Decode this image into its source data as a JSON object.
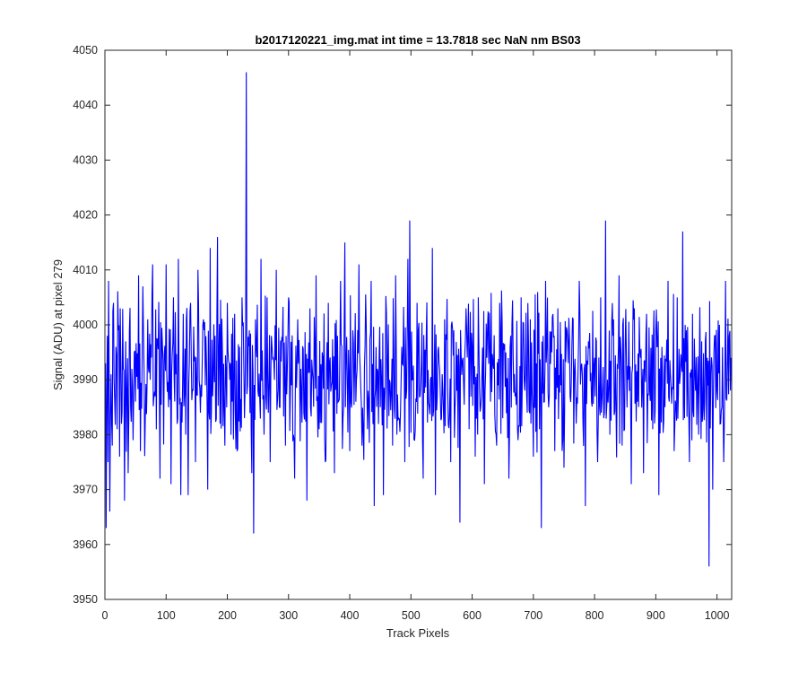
{
  "chart_data": {
    "type": "line",
    "title": "b2017120221_img.mat int time = 13.7818 sec  NaN nm BS03",
    "xlabel": "Track Pixels",
    "ylabel": "Signal (ADU) at pixel 279",
    "xlim": [
      0,
      1024
    ],
    "ylim": [
      3950,
      4050
    ],
    "xticks": [
      0,
      100,
      200,
      300,
      400,
      500,
      600,
      700,
      800,
      900,
      1000
    ],
    "yticks": [
      3950,
      3960,
      3970,
      3980,
      3990,
      4000,
      4010,
      4020,
      4030,
      4040,
      4050
    ],
    "grid": false,
    "legend": "none",
    "series": [
      {
        "color": "#0000ff",
        "x_start": 1,
        "x_step": 1,
        "baseline": 3991,
        "values_key_points": [
          [
            1,
            3993
          ],
          [
            2,
            3963
          ],
          [
            3,
            3988
          ],
          [
            4,
            3998
          ],
          [
            5,
            3975
          ],
          [
            6,
            4008
          ],
          [
            7,
            3990
          ],
          [
            8,
            3966
          ],
          [
            9,
            3983
          ],
          [
            10,
            3991
          ],
          [
            12,
            3978
          ],
          [
            14,
            4004
          ],
          [
            16,
            3986
          ],
          [
            18,
            3996
          ],
          [
            20,
            3981
          ],
          [
            22,
            3999
          ],
          [
            24,
            3976
          ],
          [
            26,
            3994
          ],
          [
            28,
            3984
          ],
          [
            30,
            3992
          ],
          [
            32,
            3968
          ],
          [
            34,
            3997
          ],
          [
            36,
            3988
          ],
          [
            38,
            3973
          ],
          [
            40,
            3999
          ],
          [
            42,
            3985
          ],
          [
            44,
            3992
          ],
          [
            46,
            3979
          ],
          [
            48,
            3995
          ],
          [
            50,
            3986
          ],
          [
            55,
            4009
          ],
          [
            58,
            3977
          ],
          [
            62,
            4007
          ],
          [
            66,
            3983
          ],
          [
            70,
            4001
          ],
          [
            74,
            3990
          ],
          [
            78,
            4011
          ],
          [
            82,
            3987
          ],
          [
            86,
            3997
          ],
          [
            90,
            3972
          ],
          [
            95,
            3993
          ],
          [
            100,
            4011
          ],
          [
            104,
            3985
          ],
          [
            108,
            3971
          ],
          [
            112,
            4005
          ],
          [
            116,
            3991
          ],
          [
            120,
            4012
          ],
          [
            124,
            3969
          ],
          [
            128,
            4002
          ],
          [
            132,
            3980
          ],
          [
            136,
            3969
          ],
          [
            140,
            4004
          ],
          [
            144,
            3988
          ],
          [
            148,
            3975
          ],
          [
            152,
            4010
          ],
          [
            156,
            3984
          ],
          [
            160,
            4000
          ],
          [
            164,
            3989
          ],
          [
            168,
            3970
          ],
          [
            172,
            4014
          ],
          [
            176,
            3987
          ],
          [
            180,
            3998
          ],
          [
            184,
            4016
          ],
          [
            188,
            3982
          ],
          [
            192,
            3995
          ],
          [
            196,
            3978
          ],
          [
            200,
            4004
          ],
          [
            204,
            3990
          ],
          [
            208,
            3986
          ],
          [
            212,
            4002
          ],
          [
            216,
            3977
          ],
          [
            220,
            3996
          ],
          [
            224,
            4005
          ],
          [
            228,
            3983
          ],
          [
            231,
            4046
          ],
          [
            233,
            3989
          ],
          [
            236,
            3999
          ],
          [
            240,
            3973
          ],
          [
            243,
            3962
          ],
          [
            246,
            4001
          ],
          [
            250,
            3988
          ],
          [
            255,
            4012
          ],
          [
            260,
            3980
          ],
          [
            265,
            4005
          ],
          [
            270,
            3975
          ],
          [
            275,
            3994
          ],
          [
            280,
            4010
          ],
          [
            285,
            3985
          ],
          [
            290,
            3997
          ],
          [
            295,
            3978
          ],
          [
            300,
            4005
          ],
          [
            305,
            3989
          ],
          [
            310,
            3972
          ],
          [
            315,
            4001
          ],
          [
            320,
            3992
          ],
          [
            325,
            3984
          ],
          [
            330,
            3968
          ],
          [
            335,
            4003
          ],
          [
            340,
            3990
          ],
          [
            345,
            4009
          ],
          [
            350,
            3981
          ],
          [
            355,
            3995
          ],
          [
            360,
            3975
          ],
          [
            365,
            4004
          ],
          [
            370,
            3989
          ],
          [
            375,
            3973
          ],
          [
            380,
            3998
          ],
          [
            385,
            4008
          ],
          [
            389,
            3983
          ],
          [
            392,
            4015
          ],
          [
            396,
            3990
          ],
          [
            400,
            3977
          ],
          [
            405,
            3999
          ],
          [
            410,
            3986
          ],
          [
            415,
            4011
          ],
          [
            420,
            3978
          ],
          [
            425,
            3996
          ],
          [
            430,
            3988
          ],
          [
            435,
            4008
          ],
          [
            440,
            3967
          ],
          [
            445,
            3992
          ],
          [
            450,
            3985
          ],
          [
            455,
            3969
          ],
          [
            460,
            4002
          ],
          [
            465,
            3990
          ],
          [
            470,
            3978
          ],
          [
            475,
            4009
          ],
          [
            480,
            3983
          ],
          [
            485,
            3996
          ],
          [
            490,
            3975
          ],
          [
            495,
            4012
          ],
          [
            498,
            4019
          ],
          [
            502,
            3990
          ],
          [
            506,
            3979
          ],
          [
            510,
            4004
          ],
          [
            515,
            3987
          ],
          [
            520,
            3972
          ],
          [
            525,
            3998
          ],
          [
            530,
            3985
          ],
          [
            535,
            4014
          ],
          [
            540,
            3969
          ],
          [
            545,
            3996
          ],
          [
            550,
            3983
          ],
          [
            555,
            4001
          ],
          [
            560,
            3989
          ],
          [
            565,
            3975
          ],
          [
            570,
            3999
          ],
          [
            575,
            3988
          ],
          [
            580,
            3964
          ],
          [
            585,
            3994
          ],
          [
            590,
            4003
          ],
          [
            595,
            3981
          ],
          [
            600,
            3996
          ],
          [
            605,
            3976
          ],
          [
            610,
            4005
          ],
          [
            615,
            3987
          ],
          [
            620,
            3971
          ],
          [
            625,
            3999
          ],
          [
            630,
            3986
          ],
          [
            635,
            3992
          ],
          [
            640,
            3978
          ],
          [
            645,
            4004
          ],
          [
            650,
            3983
          ],
          [
            655,
            3995
          ],
          [
            660,
            3972
          ],
          [
            665,
            4000
          ],
          [
            670,
            3987
          ],
          [
            675,
            3979
          ],
          [
            680,
            4005
          ],
          [
            685,
            3990
          ],
          [
            690,
            3984
          ],
          [
            695,
            4001
          ],
          [
            700,
            3976
          ],
          [
            705,
            3993
          ],
          [
            710,
            3981
          ],
          [
            713,
            3963
          ],
          [
            716,
            3998
          ],
          [
            720,
            4008
          ],
          [
            725,
            3985
          ],
          [
            730,
            3995
          ],
          [
            735,
            3977
          ],
          [
            740,
            4003
          ],
          [
            745,
            3989
          ],
          [
            750,
            3974
          ],
          [
            755,
            3999
          ],
          [
            760,
            3987
          ],
          [
            765,
            4001
          ],
          [
            770,
            3982
          ],
          [
            775,
            4008
          ],
          [
            780,
            3991
          ],
          [
            785,
            3967
          ],
          [
            790,
            3997
          ],
          [
            795,
            3986
          ],
          [
            800,
            3994
          ],
          [
            805,
            3975
          ],
          [
            810,
            4005
          ],
          [
            815,
            3983
          ],
          [
            818,
            4019
          ],
          [
            821,
            3990
          ],
          [
            825,
            3980
          ],
          [
            830,
            3998
          ],
          [
            835,
            3985
          ],
          [
            840,
            4009
          ],
          [
            845,
            3978
          ],
          [
            850,
            3996
          ],
          [
            855,
            3990
          ],
          [
            860,
            3971
          ],
          [
            865,
            4003
          ],
          [
            870,
            3986
          ],
          [
            875,
            3994
          ],
          [
            880,
            3973
          ],
          [
            885,
            4002
          ],
          [
            890,
            3988
          ],
          [
            895,
            3981
          ],
          [
            900,
            3999
          ],
          [
            905,
            3969
          ],
          [
            910,
            3996
          ],
          [
            915,
            3985
          ],
          [
            920,
            4008
          ],
          [
            925,
            3989
          ],
          [
            930,
            3977
          ],
          [
            935,
            4005
          ],
          [
            940,
            3991
          ],
          [
            944,
            4017
          ],
          [
            947,
            3983
          ],
          [
            950,
            3999
          ],
          [
            955,
            3975
          ],
          [
            960,
            4002
          ],
          [
            965,
            3988
          ],
          [
            970,
            3980
          ],
          [
            975,
            3997
          ],
          [
            980,
            3986
          ],
          [
            984,
            3994
          ],
          [
            987,
            3956
          ],
          [
            990,
            3991
          ],
          [
            993,
            3970
          ],
          [
            996,
            3998
          ],
          [
            1000,
            3988
          ],
          [
            1004,
            4000
          ],
          [
            1008,
            3985
          ],
          [
            1011,
            3975
          ],
          [
            1014,
            4008
          ],
          [
            1017,
            3993
          ],
          [
            1020,
            3998
          ],
          [
            1023,
            3994
          ]
        ]
      }
    ]
  }
}
